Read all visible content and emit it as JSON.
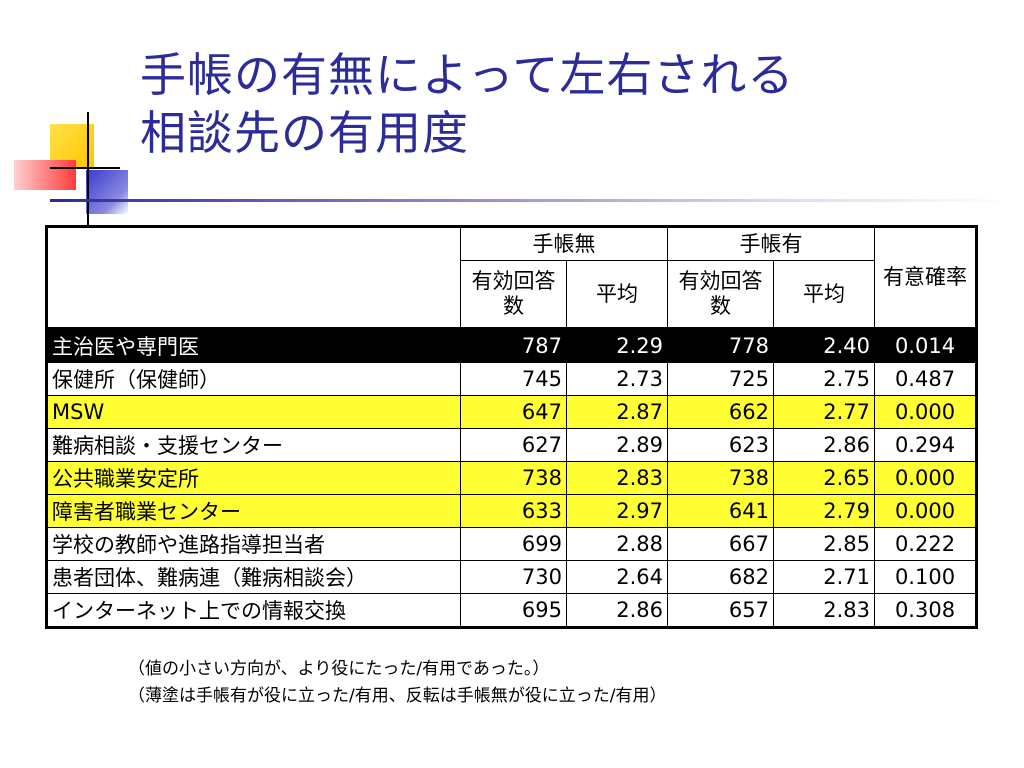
{
  "title": {
    "line1": "手帳の有無によって左右される",
    "line2": "相談先の有用度"
  },
  "table": {
    "group_no": "手帳無",
    "group_yes": "手帳有",
    "sig_header": "有意確率",
    "col_n": "有効回答数",
    "col_avg": "平均",
    "rows": [
      {
        "label": "主治医や専門医",
        "n_no": "787",
        "avg_no": "2.29",
        "n_yes": "778",
        "avg_yes": "2.40",
        "p": "0.014",
        "style": "inverted"
      },
      {
        "label": "保健所（保健師）",
        "n_no": "745",
        "avg_no": "2.73",
        "n_yes": "725",
        "avg_yes": "2.75",
        "p": "0.487",
        "style": "plain"
      },
      {
        "label": "MSW",
        "n_no": "647",
        "avg_no": "2.87",
        "n_yes": "662",
        "avg_yes": "2.77",
        "p": "0.000",
        "style": "highlight"
      },
      {
        "label": "難病相談・支援センター",
        "n_no": "627",
        "avg_no": "2.89",
        "n_yes": "623",
        "avg_yes": "2.86",
        "p": "0.294",
        "style": "plain"
      },
      {
        "label": "公共職業安定所",
        "n_no": "738",
        "avg_no": "2.83",
        "n_yes": "738",
        "avg_yes": "2.65",
        "p": "0.000",
        "style": "highlight"
      },
      {
        "label": "障害者職業センター",
        "n_no": "633",
        "avg_no": "2.97",
        "n_yes": "641",
        "avg_yes": "2.79",
        "p": "0.000",
        "style": "highlight"
      },
      {
        "label": "学校の教師や進路指導担当者",
        "n_no": "699",
        "avg_no": "2.88",
        "n_yes": "667",
        "avg_yes": "2.85",
        "p": "0.222",
        "style": "plain"
      },
      {
        "label": "患者団体、難病連（難病相談会）",
        "n_no": "730",
        "avg_no": "2.64",
        "n_yes": "682",
        "avg_yes": "2.71",
        "p": "0.100",
        "style": "plain"
      },
      {
        "label": "インターネット上での情報交換",
        "n_no": "695",
        "avg_no": "2.86",
        "n_yes": "657",
        "avg_yes": "2.83",
        "p": "0.308",
        "style": "plain"
      }
    ]
  },
  "notes": {
    "line1": "（値の小さい方向が、より役にたった/有用であった。）",
    "line2": "（薄塗は手帳有が役に立った/有用、反転は手帳無が役に立った/有用）"
  },
  "colors": {
    "title": "#2b2b9a",
    "highlight": "#ffff33",
    "inverted_bg": "#000000",
    "deco_yellow": "#ffd700",
    "deco_red": "#ff4040",
    "deco_blue": "#2b2bb0"
  }
}
